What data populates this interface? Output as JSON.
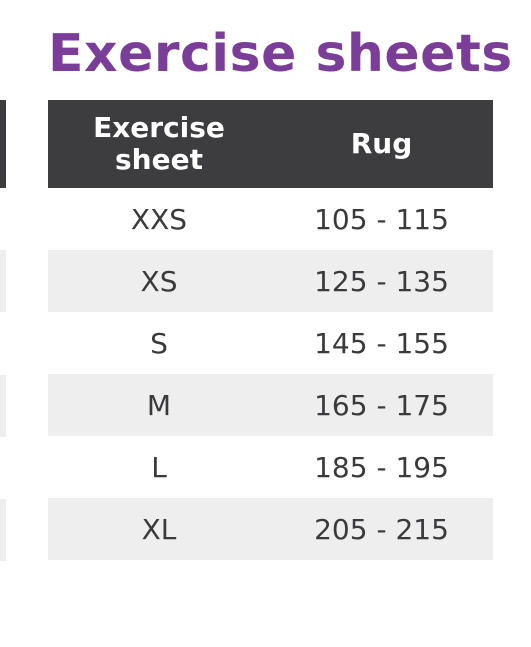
{
  "title": "Exercise sheets",
  "colors": {
    "title": "#7a3e98",
    "header_bg": "#3d3c3e",
    "header_text": "#ffffff",
    "stripe_bg": "#eeeeef",
    "row_bg": "#ffffff",
    "cell_text": "#3a3a3c"
  },
  "table": {
    "headers": [
      "Exercise\nsheet",
      "Rug"
    ],
    "rows": [
      [
        "XXS",
        "105 - 115"
      ],
      [
        "XS",
        "125 - 135"
      ],
      [
        "S",
        "145 - 155"
      ],
      [
        "M",
        "165 - 175"
      ],
      [
        "L",
        "185 - 195"
      ],
      [
        "XL",
        "205 - 215"
      ]
    ]
  }
}
